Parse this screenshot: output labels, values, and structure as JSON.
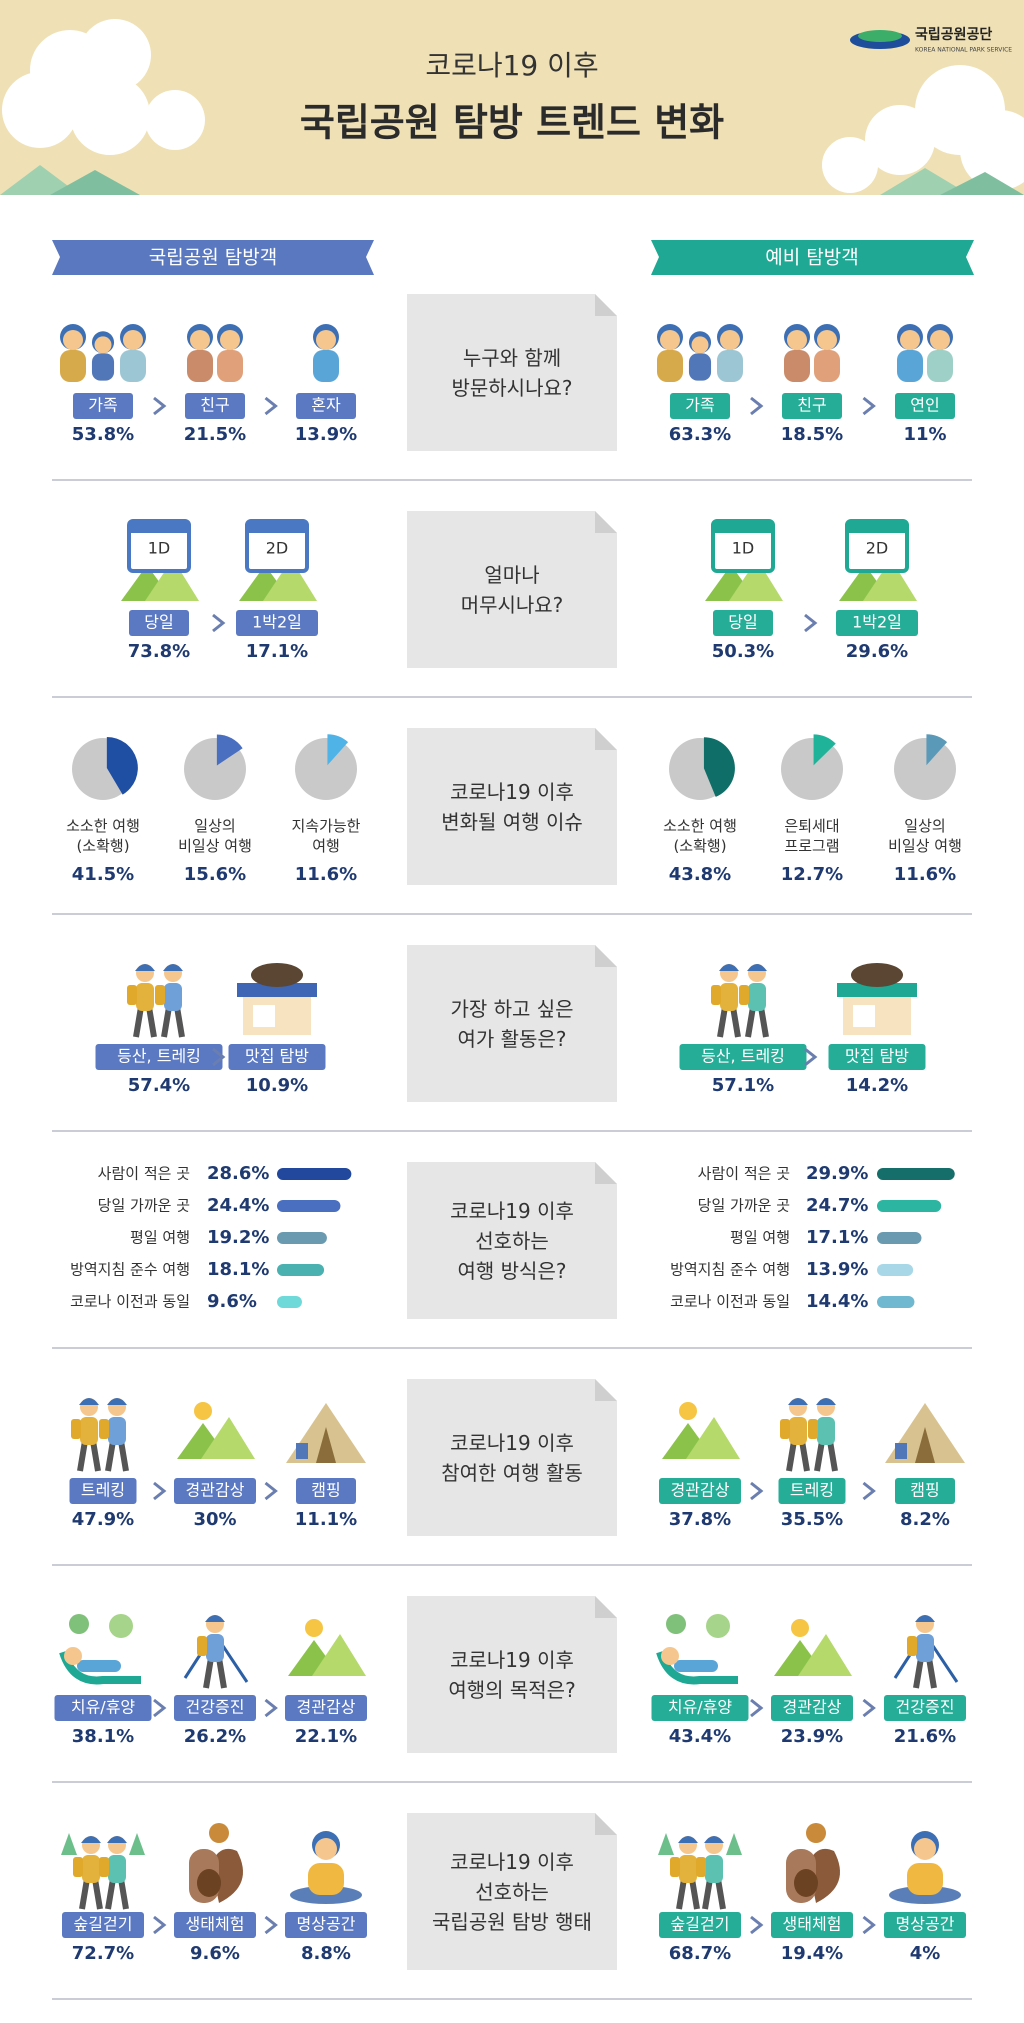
{
  "header": {
    "logo": "국립공원공단",
    "logo_sub": "KOREA NATIONAL PARK SERVICE",
    "title_top": "코로나19 이후",
    "title": "국립공원 탐방 트렌드 변화"
  },
  "columns": {
    "left": "국립공원 탐방객",
    "right": "예비 탐방객"
  },
  "sections": [
    {
      "question": "누구와 함께\n방문하시나요?",
      "left": [
        {
          "label": "가족",
          "value": 53.8,
          "value_label": "53.8%"
        },
        {
          "label": "친구",
          "value": 21.5,
          "value_label": "21.5%"
        },
        {
          "label": "혼자",
          "value": 13.9,
          "value_label": "13.9%"
        }
      ],
      "right": [
        {
          "label": "가족",
          "value": 63.3,
          "value_label": "63.3%"
        },
        {
          "label": "친구",
          "value": 18.5,
          "value_label": "18.5%"
        },
        {
          "label": "연인",
          "value": 11,
          "value_label": "11%"
        }
      ]
    },
    {
      "question": "얼마나\n머무시나요?",
      "left": [
        {
          "label": "당일",
          "icon_label": "1D",
          "value": 73.8,
          "value_label": "73.8%"
        },
        {
          "label": "1박2일",
          "icon_label": "2D",
          "value": 17.1,
          "value_label": "17.1%"
        }
      ],
      "right": [
        {
          "label": "당일",
          "icon_label": "1D",
          "value": 50.3,
          "value_label": "50.3%"
        },
        {
          "label": "1박2일",
          "icon_label": "2D",
          "value": 29.6,
          "value_label": "29.6%"
        }
      ]
    },
    {
      "question": "코로나19 이후\n변화될 여행 이슈",
      "left": [
        {
          "label": "소소한 여행\n(소확행)",
          "value": 41.5,
          "value_label": "41.5%"
        },
        {
          "label": "일상의\n비일상 여행",
          "value": 15.6,
          "value_label": "15.6%"
        },
        {
          "label": "지속가능한\n여행",
          "value": 11.6,
          "value_label": "11.6%"
        }
      ],
      "right": [
        {
          "label": "소소한 여행\n(소확행)",
          "value": 43.8,
          "value_label": "43.8%"
        },
        {
          "label": "은퇴세대\n프로그램",
          "value": 12.7,
          "value_label": "12.7%"
        },
        {
          "label": "일상의\n비일상 여행",
          "value": 11.6,
          "value_label": "11.6%"
        }
      ]
    },
    {
      "question": "가장 하고 싶은\n여가 활동은?",
      "left": [
        {
          "label": "등산, 트레킹",
          "value": 57.4,
          "value_label": "57.4%"
        },
        {
          "label": "맛집 탐방",
          "value": 10.9,
          "value_label": "10.9%"
        }
      ],
      "right": [
        {
          "label": "등산, 트레킹",
          "value": 57.1,
          "value_label": "57.1%"
        },
        {
          "label": "맛집 탐방",
          "value": 14.2,
          "value_label": "14.2%"
        }
      ]
    },
    {
      "question": "코로나19 이후\n선호하는\n여행 방식은?",
      "left": [
        {
          "label": "사람이 적은 곳",
          "value": 28.6,
          "value_label": "28.6%"
        },
        {
          "label": "당일 가까운 곳",
          "value": 24.4,
          "value_label": "24.4%"
        },
        {
          "label": "평일 여행",
          "value": 19.2,
          "value_label": "19.2%"
        },
        {
          "label": "방역지침 준수 여행",
          "value": 18.1,
          "value_label": "18.1%"
        },
        {
          "label": "코로나 이전과 동일",
          "value": 9.6,
          "value_label": "9.6%"
        }
      ],
      "right": [
        {
          "label": "사람이 적은 곳",
          "value": 29.9,
          "value_label": "29.9%"
        },
        {
          "label": "당일 가까운 곳",
          "value": 24.7,
          "value_label": "24.7%"
        },
        {
          "label": "평일 여행",
          "value": 17.1,
          "value_label": "17.1%"
        },
        {
          "label": "방역지침 준수 여행",
          "value": 13.9,
          "value_label": "13.9%"
        },
        {
          "label": "코로나 이전과 동일",
          "value": 14.4,
          "value_label": "14.4%"
        }
      ]
    },
    {
      "question": "코로나19 이후\n참여한 여행 활동",
      "left": [
        {
          "label": "트레킹",
          "value": 47.9,
          "value_label": "47.9%"
        },
        {
          "label": "경관감상",
          "value": 30,
          "value_label": "30%"
        },
        {
          "label": "캠핑",
          "value": 11.1,
          "value_label": "11.1%"
        }
      ],
      "right": [
        {
          "label": "경관감상",
          "value": 37.8,
          "value_label": "37.8%"
        },
        {
          "label": "트레킹",
          "value": 35.5,
          "value_label": "35.5%"
        },
        {
          "label": "캠핑",
          "value": 8.2,
          "value_label": "8.2%"
        }
      ]
    },
    {
      "question": "코로나19 이후\n여행의 목적은?",
      "left": [
        {
          "label": "치유/휴양",
          "value": 38.1,
          "value_label": "38.1%"
        },
        {
          "label": "건강증진",
          "value": 26.2,
          "value_label": "26.2%"
        },
        {
          "label": "경관감상",
          "value": 22.1,
          "value_label": "22.1%"
        }
      ],
      "right": [
        {
          "label": "치유/휴양",
          "value": 43.4,
          "value_label": "43.4%"
        },
        {
          "label": "경관감상",
          "value": 23.9,
          "value_label": "23.9%"
        },
        {
          "label": "건강증진",
          "value": 21.6,
          "value_label": "21.6%"
        }
      ]
    },
    {
      "question": "코로나19 이후\n선호하는\n국립공원 탐방 행태",
      "left": [
        {
          "label": "숲길걷기",
          "value": 72.7,
          "value_label": "72.7%"
        },
        {
          "label": "생태체험",
          "value": 9.6,
          "value_label": "9.6%"
        },
        {
          "label": "명상공간",
          "value": 8.8,
          "value_label": "8.8%"
        }
      ],
      "right": [
        {
          "label": "숲길걷기",
          "value": 68.7,
          "value_label": "68.7%"
        },
        {
          "label": "생태체험",
          "value": 19.4,
          "value_label": "19.4%"
        },
        {
          "label": "명상공간",
          "value": 4,
          "value_label": "4%"
        }
      ]
    }
  ]
}
